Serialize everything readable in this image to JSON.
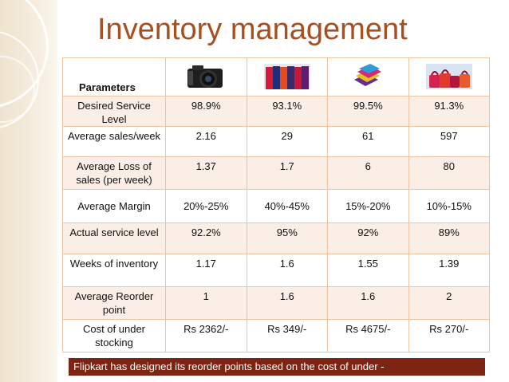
{
  "title": "Inventory management",
  "table": {
    "header_label": "Parameters",
    "columns": [
      "camera-image",
      "tshirts-image",
      "napkins-image",
      "handbags-image"
    ],
    "rows": [
      {
        "param": "Desired Service Level",
        "values": [
          "98.9%",
          "93.1%",
          "99.5%",
          "91.3%"
        ]
      },
      {
        "param": "Average sales/week",
        "values": [
          "2.16",
          "29",
          "61",
          "597"
        ]
      },
      {
        "param": "Average Loss of sales (per week)",
        "values": [
          "1.37",
          "1.7",
          "6",
          "80"
        ]
      },
      {
        "param": "Average Margin",
        "values": [
          "20%-25%",
          "40%-45%",
          "15%-20%",
          "10%-15%"
        ]
      },
      {
        "param": "Actual service level",
        "values": [
          "92.2%",
          "95%",
          "92%",
          "89%"
        ]
      },
      {
        "param": "Weeks of inventory",
        "values": [
          "1.17",
          "1.6",
          "1.55",
          "1.39"
        ]
      },
      {
        "param": "Average Reorder point",
        "values": [
          "1",
          "1.6",
          "1.6",
          "2"
        ]
      },
      {
        "param": "Cost of under stocking",
        "values": [
          "Rs 2362/-",
          "Rs 349/-",
          "Rs 4675/-",
          "Rs 270/-"
        ]
      }
    ]
  },
  "footer": "Flipkart has designed its reorder points based on the cost of under -",
  "colors": {
    "title": "#a94e1f",
    "footer_bg": "#7e2412",
    "table_border": "#e38d5a",
    "row_tint": "#fbeee6"
  }
}
